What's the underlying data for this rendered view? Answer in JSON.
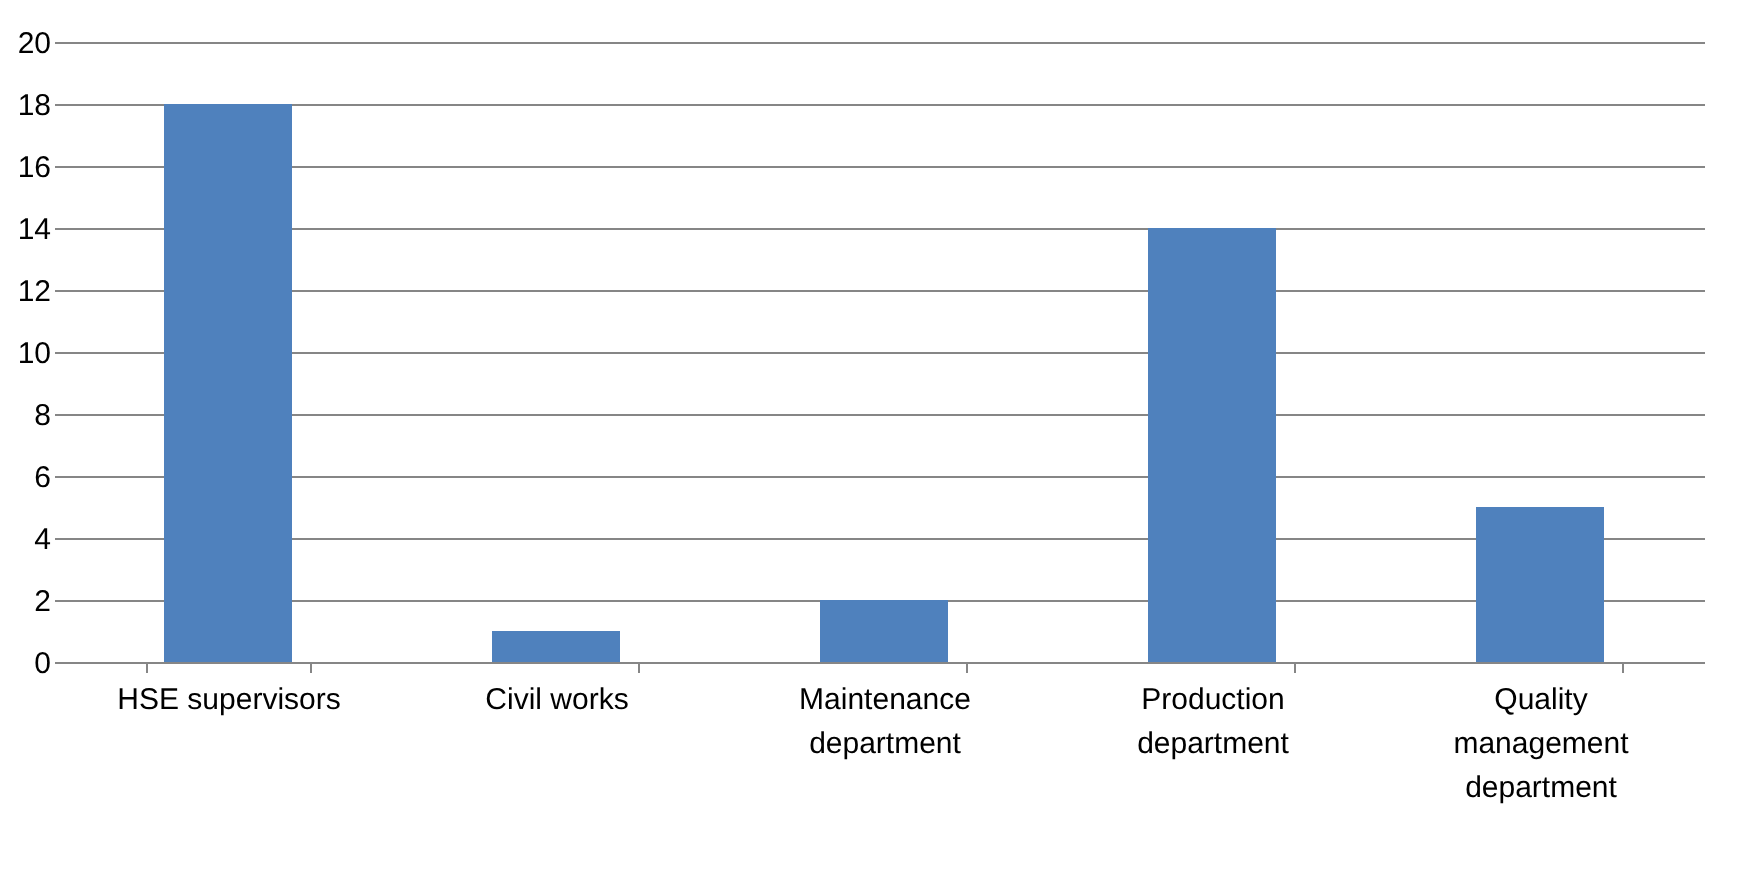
{
  "chart_data": {
    "type": "bar",
    "categories": [
      "HSE supervisors",
      "Civil works",
      "Maintenance department",
      "Production department",
      "Quality management department"
    ],
    "values": [
      18,
      1,
      2,
      14,
      5
    ],
    "color": "#4f81bd",
    "ylim": [
      0,
      20
    ],
    "yticks": [
      0,
      2,
      4,
      6,
      8,
      10,
      12,
      14,
      16,
      18,
      20
    ],
    "grid": "y"
  }
}
